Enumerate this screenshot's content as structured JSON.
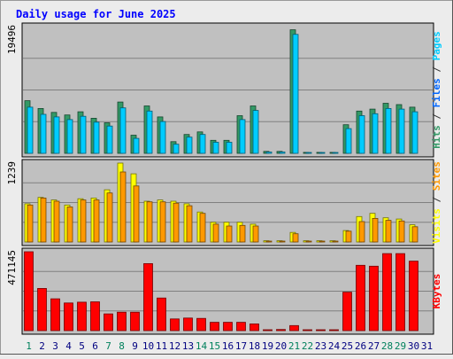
{
  "chart_data": {
    "type": "bar",
    "title": "Daily usage for June 2025",
    "categories": [
      "1",
      "2",
      "3",
      "4",
      "5",
      "6",
      "7",
      "8",
      "9",
      "10",
      "11",
      "12",
      "13",
      "14",
      "15",
      "16",
      "17",
      "18",
      "19",
      "20",
      "21",
      "22",
      "23",
      "24",
      "25",
      "26",
      "27",
      "28",
      "29",
      "30",
      "31"
    ],
    "weekend_days": [
      "1",
      "7",
      "8",
      "14",
      "15",
      "21",
      "22",
      "28",
      "29"
    ],
    "panels": [
      {
        "id": "hits",
        "scale_label": "19496",
        "ymax": 19496,
        "series": [
          {
            "name": "Hits",
            "color": "#339966",
            "values": [
              8100,
              6900,
              6300,
              5900,
              6400,
              5400,
              4700,
              7900,
              2800,
              7300,
              5600,
              1800,
              2900,
              3300,
              2000,
              2000,
              5800,
              7300,
              300,
              300,
              19000,
              150,
              150,
              150,
              4400,
              6500,
              6800,
              7700,
              7500,
              7100,
              0
            ]
          },
          {
            "name": "Files",
            "color": "#0066ff",
            "values": [
              7100,
              6000,
              5600,
              5200,
              5700,
              4800,
              4200,
              7000,
              2300,
              6500,
              4900,
              1400,
              2500,
              2900,
              1700,
              1700,
              5200,
              6600,
              200,
              200,
              18300,
              100,
              100,
              100,
              3800,
              5800,
              6100,
              6900,
              6800,
              6400,
              0
            ]
          },
          {
            "name": "Pages",
            "color": "#00ccff",
            "values": [
              7100,
              6000,
              5600,
              5200,
              5700,
              4800,
              4200,
              7000,
              2300,
              6500,
              4900,
              1400,
              2500,
              2900,
              1700,
              1700,
              5200,
              6600,
              200,
              200,
              18300,
              100,
              100,
              100,
              3800,
              5800,
              6100,
              6900,
              6800,
              6400,
              0
            ]
          }
        ],
        "axis_labels": [
          "Pages",
          "Files",
          "Hits"
        ]
      },
      {
        "id": "visits",
        "scale_label": "1239",
        "ymax": 1239,
        "series": [
          {
            "name": "Visits",
            "color": "#ffff00",
            "values": [
              600,
              700,
              660,
              580,
              680,
              690,
              820,
              1239,
              1070,
              640,
              660,
              640,
              600,
              470,
              310,
              310,
              310,
              280,
              20,
              20,
              150,
              20,
              20,
              20,
              180,
              400,
              450,
              380,
              360,
              270,
              0
            ]
          },
          {
            "name": "Sites",
            "color": "#ff9900",
            "values": [
              580,
              690,
              640,
              550,
              660,
              660,
              770,
              1100,
              880,
              630,
              630,
              610,
              570,
              450,
              280,
              250,
              260,
              250,
              10,
              10,
              130,
              10,
              10,
              10,
              170,
              320,
              370,
              340,
              330,
              240,
              0
            ]
          }
        ],
        "axis_labels": [
          "Sites",
          "Visits"
        ]
      },
      {
        "id": "kbytes",
        "scale_label": "471145",
        "ymax": 471145,
        "series": [
          {
            "name": "KBytes",
            "color": "#ff0000",
            "values": [
              471145,
              252000,
              190000,
              165000,
              170000,
              172000,
              100000,
              110000,
              110000,
              400000,
              195000,
              70000,
              75000,
              73000,
              50000,
              50000,
              50000,
              40000,
              5000,
              7000,
              30000,
              3000,
              3000,
              3000,
              230000,
              390000,
              385000,
              460000,
              460000,
              415000,
              0
            ]
          }
        ],
        "axis_labels": [
          "KBytes"
        ]
      }
    ],
    "colors": {
      "background": "#ececec",
      "plot": "#c0c0c0",
      "title": "#0000ff",
      "day_normal": "#000080",
      "day_weekend": "#00805c",
      "separator": "#333333"
    }
  }
}
